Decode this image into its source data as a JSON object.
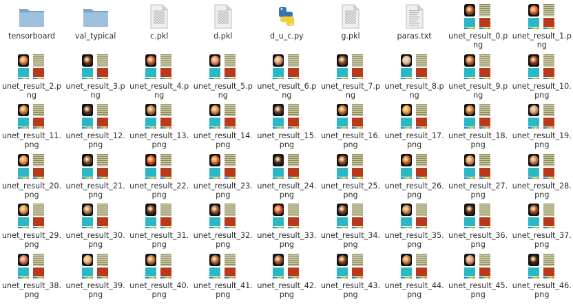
{
  "files": [
    {
      "name": "tensorboard",
      "kind": "folder-icon"
    },
    {
      "name": "val_typical",
      "kind": "folder-icon"
    },
    {
      "name": "c.pkl",
      "kind": "binary-file-icon"
    },
    {
      "name": "d.pkl",
      "kind": "binary-file-icon"
    },
    {
      "name": "d_u_c.py",
      "kind": "python-file-icon"
    },
    {
      "name": "g.pkl",
      "kind": "binary-file-icon"
    },
    {
      "name": "paras.txt",
      "kind": "text-file-icon"
    },
    {
      "name": "unet_result_0.png",
      "kind": "image-thumbnail",
      "tint": "#a64a28"
    },
    {
      "name": "unet_result_1.png",
      "kind": "image-thumbnail",
      "tint": "#e25a30"
    },
    {
      "name": "unet_result_2.png",
      "kind": "image-thumbnail",
      "tint": "#d47a4a"
    },
    {
      "name": "unet_result_3.png",
      "kind": "image-thumbnail",
      "tint": "#6a3420"
    },
    {
      "name": "unet_result_4.png",
      "kind": "image-thumbnail",
      "tint": "#c05a32"
    },
    {
      "name": "unet_result_5.png",
      "kind": "image-thumbnail",
      "tint": "#e0866a"
    },
    {
      "name": "unet_result_6.png",
      "kind": "image-thumbnail",
      "tint": "#d39a7a"
    },
    {
      "name": "unet_result_7.png",
      "kind": "image-thumbnail",
      "tint": "#7a4a2e"
    },
    {
      "name": "unet_result_8.png",
      "kind": "image-thumbnail",
      "tint": "#d8c0a8"
    },
    {
      "name": "unet_result_9.png",
      "kind": "image-thumbnail",
      "tint": "#c0603a"
    },
    {
      "name": "unet_result_10.png",
      "kind": "image-thumbnail",
      "tint": "#8a3a20"
    },
    {
      "name": "unet_result_11.png",
      "kind": "image-thumbnail",
      "tint": "#c97a3a"
    },
    {
      "name": "unet_result_12.png",
      "kind": "image-thumbnail",
      "tint": "#4a3020"
    },
    {
      "name": "unet_result_13.png",
      "kind": "image-thumbnail",
      "tint": "#b57a4a"
    },
    {
      "name": "unet_result_14.png",
      "kind": "image-thumbnail",
      "tint": "#d08a4a"
    },
    {
      "name": "unet_result_15.png",
      "kind": "image-thumbnail",
      "tint": "#5a3a28"
    },
    {
      "name": "unet_result_16.png",
      "kind": "image-thumbnail",
      "tint": "#c07030"
    },
    {
      "name": "unet_result_17.png",
      "kind": "image-thumbnail",
      "tint": "#e0a040"
    },
    {
      "name": "unet_result_18.png",
      "kind": "image-thumbnail",
      "tint": "#c0703a"
    },
    {
      "name": "unet_result_19.png",
      "kind": "image-thumbnail",
      "tint": "#d89a7a"
    },
    {
      "name": "unet_result_20.png",
      "kind": "image-thumbnail",
      "tint": "#e08a4a"
    },
    {
      "name": "unet_result_21.png",
      "kind": "image-thumbnail",
      "tint": "#6a4a30"
    },
    {
      "name": "unet_result_22.png",
      "kind": "image-thumbnail",
      "tint": "#e04a1a"
    },
    {
      "name": "unet_result_23.png",
      "kind": "image-thumbnail",
      "tint": "#d06a3a"
    },
    {
      "name": "unet_result_24.png",
      "kind": "image-thumbnail",
      "tint": "#3a2818"
    },
    {
      "name": "unet_result_25.png",
      "kind": "image-thumbnail",
      "tint": "#8a4a28"
    },
    {
      "name": "unet_result_26.png",
      "kind": "image-thumbnail",
      "tint": "#c0602a"
    },
    {
      "name": "unet_result_27.png",
      "kind": "image-thumbnail",
      "tint": "#d89060"
    },
    {
      "name": "unet_result_28.png",
      "kind": "image-thumbnail",
      "tint": "#c07a5a"
    },
    {
      "name": "unet_result_29.png",
      "kind": "image-thumbnail",
      "tint": "#e0904a"
    },
    {
      "name": "unet_result_30.png",
      "kind": "image-thumbnail",
      "tint": "#b07a5a"
    },
    {
      "name": "unet_result_31.png",
      "kind": "image-thumbnail",
      "tint": "#5a3020"
    },
    {
      "name": "unet_result_32.png",
      "kind": "image-thumbnail",
      "tint": "#8a5030"
    },
    {
      "name": "unet_result_33.png",
      "kind": "image-thumbnail",
      "tint": "#e0502a"
    },
    {
      "name": "unet_result_34.png",
      "kind": "image-thumbnail",
      "tint": "#6a4028"
    },
    {
      "name": "unet_result_35.png",
      "kind": "image-thumbnail",
      "tint": "#c08a5a"
    },
    {
      "name": "unet_result_36.png",
      "kind": "image-thumbnail",
      "tint": "#4a2818"
    },
    {
      "name": "unet_result_37.png",
      "kind": "image-thumbnail",
      "tint": "#9a4a28"
    },
    {
      "name": "unet_result_38.png",
      "kind": "image-thumbnail",
      "tint": "#d06a5a"
    },
    {
      "name": "unet_result_39.png",
      "kind": "image-thumbnail",
      "tint": "#e8b080"
    },
    {
      "name": "unet_result_40.png",
      "kind": "image-thumbnail",
      "tint": "#c0703a"
    },
    {
      "name": "unet_result_41.png",
      "kind": "image-thumbnail",
      "tint": "#b0603a"
    },
    {
      "name": "unet_result_42.png",
      "kind": "image-thumbnail",
      "tint": "#a05030"
    },
    {
      "name": "unet_result_43.png",
      "kind": "image-thumbnail",
      "tint": "#7a4028"
    },
    {
      "name": "unet_result_44.png",
      "kind": "image-thumbnail",
      "tint": "#c08040"
    },
    {
      "name": "unet_result_45.png",
      "kind": "image-thumbnail",
      "tint": "#d8907a"
    },
    {
      "name": "unet_result_46.png",
      "kind": "image-thumbnail",
      "tint": "#3a2414"
    }
  ],
  "colors": {
    "folder_body": "#7fa7cc",
    "folder_tab": "#9cc0de",
    "page": "#efefef",
    "page_fold": "#d4d4d4",
    "python_blue": "#3a72b0",
    "python_yellow": "#f1cf3a"
  }
}
